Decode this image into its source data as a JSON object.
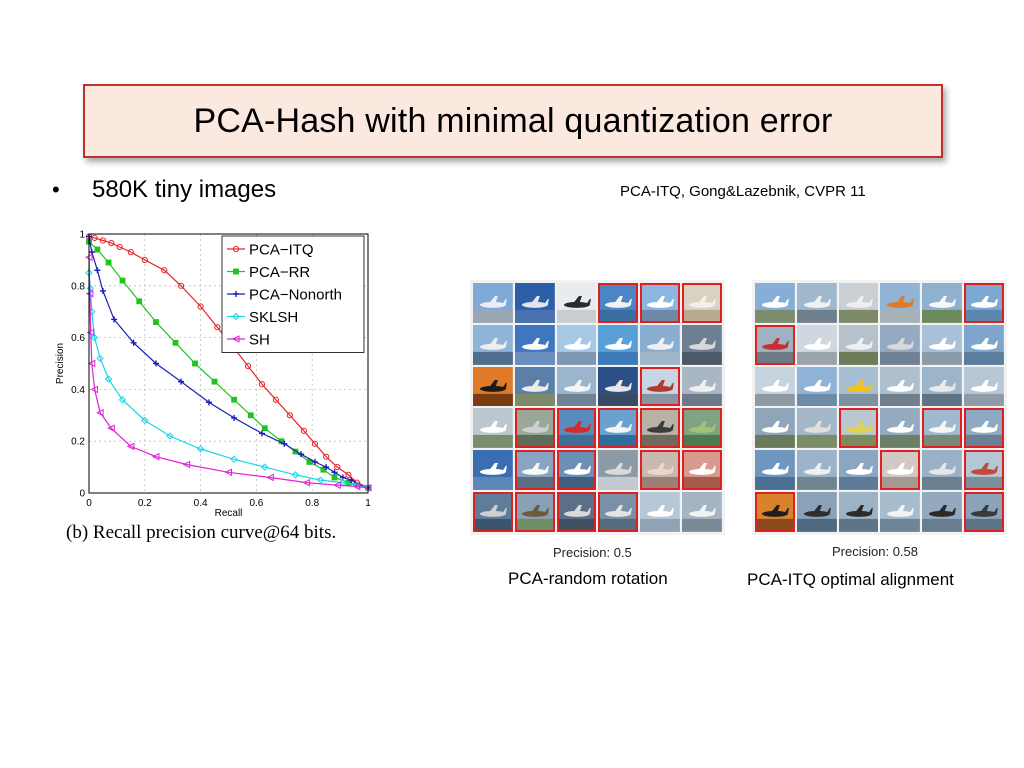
{
  "slide": {
    "title": "PCA-Hash with minimal quantization error",
    "bullet_text": "580K tiny images",
    "citation": "PCA-ITQ, Gong&Lazebnik, CVPR 11",
    "chart_caption": "(b)  Recall precision curve@64 bits.",
    "left_grid": {
      "precision_label": "Precision: 0.5",
      "caption": "PCA-random rotation",
      "cells": [
        {
          "sky": "#7fa9d6",
          "ground": "#9aa7b3",
          "obj": "#e8eef3",
          "red": false
        },
        {
          "sky": "#2d5fa8",
          "ground": "#4a70b0",
          "obj": "#dfe5ea",
          "red": false
        },
        {
          "sky": "#e9ecef",
          "ground": "#c9cdd1",
          "obj": "#2b2b2b",
          "red": false
        },
        {
          "sky": "#4b86c4",
          "ground": "#3a6ea0",
          "obj": "#f2f2f2",
          "red": true
        },
        {
          "sky": "#8ab6e0",
          "ground": "#6e8aa8",
          "obj": "#ffffff",
          "red": true
        },
        {
          "sky": "#d9d2c2",
          "ground": "#b8a990",
          "obj": "#f1efe8",
          "red": true
        },
        {
          "sky": "#8fb3d9",
          "ground": "#4f6d8c",
          "obj": "#eeeeee",
          "red": false
        },
        {
          "sky": "#3e77c0",
          "ground": "#6a8fbf",
          "obj": "#fafafa",
          "red": false
        },
        {
          "sky": "#a7c7e7",
          "ground": "#7d98b5",
          "obj": "#ffffff",
          "red": false
        },
        {
          "sky": "#5aa0d8",
          "ground": "#3d7bb8",
          "obj": "#ffffff",
          "red": false
        },
        {
          "sky": "#8aaed1",
          "ground": "#9fb5c9",
          "obj": "#f0f0f0",
          "red": false
        },
        {
          "sky": "#6d7f92",
          "ground": "#4c5a68",
          "obj": "#d8d8d8",
          "red": false
        },
        {
          "sky": "#e07a28",
          "ground": "#7a3c12",
          "obj": "#1a1a1a",
          "red": false
        },
        {
          "sky": "#5b7fa8",
          "ground": "#7d8b6a",
          "obj": "#ececec",
          "red": false
        },
        {
          "sky": "#9bb5cc",
          "ground": "#6f8396",
          "obj": "#f5f5f5",
          "red": false
        },
        {
          "sky": "#2c4f86",
          "ground": "#384a66",
          "obj": "#e8e8e8",
          "red": false
        },
        {
          "sky": "#c8d6e3",
          "ground": "#8795a3",
          "obj": "#b03a2e",
          "red": true
        },
        {
          "sky": "#a9b7c4",
          "ground": "#6b7a86",
          "obj": "#f0f0f0",
          "red": false
        },
        {
          "sky": "#bcc8d0",
          "ground": "#7a8e6e",
          "obj": "#ffffff",
          "red": false
        },
        {
          "sky": "#9aa89a",
          "ground": "#5d6e58",
          "obj": "#cfcfcf",
          "red": true
        },
        {
          "sky": "#5a8bbf",
          "ground": "#3f6e96",
          "obj": "#d42a2a",
          "red": true
        },
        {
          "sky": "#6ca0cf",
          "ground": "#2f6d9c",
          "obj": "#f4f4f4",
          "red": true
        },
        {
          "sky": "#b9b2a5",
          "ground": "#6f6a5e",
          "obj": "#3c3c3c",
          "red": true
        },
        {
          "sky": "#7fa383",
          "ground": "#4e7a52",
          "obj": "#a2c27a",
          "red": true
        },
        {
          "sky": "#3a6eb2",
          "ground": "#5c87b8",
          "obj": "#ffffff",
          "red": false
        },
        {
          "sky": "#88a4c0",
          "ground": "#5a6f84",
          "obj": "#f7f7f7",
          "red": true
        },
        {
          "sky": "#6b8fb5",
          "ground": "#3f5f80",
          "obj": "#ffffff",
          "red": true
        },
        {
          "sky": "#8c9aa6",
          "ground": "#c2c9cf",
          "obj": "#dadada",
          "red": false
        },
        {
          "sky": "#c9b8b0",
          "ground": "#9c7f74",
          "obj": "#f0d5cc",
          "red": true
        },
        {
          "sky": "#d79a8c",
          "ground": "#a85b4c",
          "obj": "#ffffff",
          "red": true
        },
        {
          "sky": "#5f7d9b",
          "ground": "#3a566e",
          "obj": "#cfcfcf",
          "red": true
        },
        {
          "sky": "#8aa0b4",
          "ground": "#6f8d66",
          "obj": "#6f5a3c",
          "red": true
        },
        {
          "sky": "#5b7088",
          "ground": "#3f5062",
          "obj": "#d9d9d9",
          "red": true
        },
        {
          "sky": "#7a90a6",
          "ground": "#566b80",
          "obj": "#e3e3e3",
          "red": true
        },
        {
          "sky": "#b6c8d8",
          "ground": "#90a2b3",
          "obj": "#ffffff",
          "red": false
        },
        {
          "sky": "#a5b4c2",
          "ground": "#7c8a97",
          "obj": "#f2f2f2",
          "red": false
        }
      ]
    },
    "right_grid": {
      "precision_label": "Precision: 0.58",
      "caption": "PCA-ITQ optimal alignment",
      "cells": [
        {
          "sky": "#86aed6",
          "ground": "#7d8c6a",
          "obj": "#ffffff",
          "red": false
        },
        {
          "sky": "#9fb8cd",
          "ground": "#6f7f8d",
          "obj": "#f1f1f1",
          "red": false
        },
        {
          "sky": "#c8d0d6",
          "ground": "#7c8a6a",
          "obj": "#eeeeee",
          "red": false
        },
        {
          "sky": "#90b4d6",
          "ground": "#a7b1b8",
          "obj": "#e07a28",
          "red": false
        },
        {
          "sky": "#8fb0cf",
          "ground": "#6d8a5c",
          "obj": "#f6f6f6",
          "red": false
        },
        {
          "sky": "#7da8d2",
          "ground": "#5d86ad",
          "obj": "#ffffff",
          "red": true
        },
        {
          "sky": "#9fb2c4",
          "ground": "#6c7a86",
          "obj": "#c83030",
          "red": true
        },
        {
          "sky": "#cfd8df",
          "ground": "#9aa4ab",
          "obj": "#ffffff",
          "red": false
        },
        {
          "sky": "#b5c2cc",
          "ground": "#6c7d58",
          "obj": "#f0f0f0",
          "red": false
        },
        {
          "sky": "#93aac0",
          "ground": "#708196",
          "obj": "#d9d9d9",
          "red": false
        },
        {
          "sky": "#a9c1d6",
          "ground": "#8a9aa6",
          "obj": "#ffffff",
          "red": false
        },
        {
          "sky": "#7ea6cd",
          "ground": "#5b7e9e",
          "obj": "#ffffff",
          "red": false
        },
        {
          "sky": "#c5d3de",
          "ground": "#8b9aa5",
          "obj": "#ffffff",
          "red": false
        },
        {
          "sky": "#8fb3d6",
          "ground": "#6d8aa6",
          "obj": "#ffffff",
          "red": false
        },
        {
          "sky": "#a7bfd3",
          "ground": "#7e8f9e",
          "obj": "#f2c418",
          "red": false
        },
        {
          "sky": "#aebfcd",
          "ground": "#6f7f8c",
          "obj": "#ffffff",
          "red": false
        },
        {
          "sky": "#9db5c9",
          "ground": "#5f7385",
          "obj": "#eaeaea",
          "red": false
        },
        {
          "sky": "#b7c7d4",
          "ground": "#8d9ca8",
          "obj": "#ffffff",
          "red": false
        },
        {
          "sky": "#8fa6ba",
          "ground": "#6a7a5a",
          "obj": "#ffffff",
          "red": false
        },
        {
          "sky": "#a3b7c8",
          "ground": "#7c8c68",
          "obj": "#dfdfdf",
          "red": false
        },
        {
          "sky": "#b9c7cf",
          "ground": "#7d8a5e",
          "obj": "#e2d34c",
          "red": true
        },
        {
          "sky": "#94abbf",
          "ground": "#6c7f68",
          "obj": "#ffffff",
          "red": false
        },
        {
          "sky": "#a1b9cd",
          "ground": "#78897a",
          "obj": "#f5f5f5",
          "red": true
        },
        {
          "sky": "#8ea9c2",
          "ground": "#6b7f92",
          "obj": "#ffffff",
          "red": true
        },
        {
          "sky": "#6f96be",
          "ground": "#4b6f92",
          "obj": "#ffffff",
          "red": false
        },
        {
          "sky": "#9ab3ca",
          "ground": "#70858f",
          "obj": "#f0f0f0",
          "red": false
        },
        {
          "sky": "#8aa6c2",
          "ground": "#5d7a96",
          "obj": "#ffffff",
          "red": false
        },
        {
          "sky": "#d2c9c4",
          "ground": "#a39892",
          "obj": "#ffffff",
          "red": true
        },
        {
          "sky": "#9ab2c8",
          "ground": "#6a7f8f",
          "obj": "#e6e6e6",
          "red": false
        },
        {
          "sky": "#b5c6d4",
          "ground": "#7c8f9c",
          "obj": "#c24a3a",
          "red": true
        },
        {
          "sky": "#d9822e",
          "ground": "#8a4a1c",
          "obj": "#1f1f1f",
          "red": true
        },
        {
          "sky": "#8aa2b7",
          "ground": "#4f6a80",
          "obj": "#2f2f2f",
          "red": false
        },
        {
          "sky": "#9cb3c6",
          "ground": "#5d7586",
          "obj": "#2b2b2b",
          "red": false
        },
        {
          "sky": "#a7bccd",
          "ground": "#6e8596",
          "obj": "#f4f4f4",
          "red": false
        },
        {
          "sky": "#93aabe",
          "ground": "#687d8f",
          "obj": "#2a2a2a",
          "red": false
        },
        {
          "sky": "#8aa3b9",
          "ground": "#5e7588",
          "obj": "#3a3a3a",
          "red": true
        }
      ]
    }
  },
  "chart_data": {
    "type": "line",
    "title": "",
    "xlabel": "Recall",
    "ylabel": "Precision",
    "xlim": [
      0,
      1
    ],
    "ylim": [
      0,
      1
    ],
    "xticks": [
      "0",
      "0.2",
      "0.4",
      "0.6",
      "0.8",
      "1"
    ],
    "yticks": [
      "0",
      "0.2",
      "0.4",
      "0.6",
      "0.8",
      "1"
    ],
    "legend_position": "top-right",
    "grid": true,
    "series": [
      {
        "name": "PCA−ITQ",
        "color": "#e8262b",
        "marker": "circle",
        "x": [
          0.0,
          0.02,
          0.05,
          0.08,
          0.11,
          0.15,
          0.2,
          0.27,
          0.33,
          0.4,
          0.46,
          0.52,
          0.57,
          0.62,
          0.67,
          0.72,
          0.77,
          0.81,
          0.85,
          0.89,
          0.93,
          0.96,
          1.0
        ],
        "y": [
          0.99,
          0.985,
          0.975,
          0.965,
          0.95,
          0.93,
          0.9,
          0.86,
          0.8,
          0.72,
          0.64,
          0.56,
          0.49,
          0.42,
          0.36,
          0.3,
          0.24,
          0.19,
          0.14,
          0.1,
          0.07,
          0.04,
          0.02
        ]
      },
      {
        "name": "PCA−RR",
        "color": "#1fc41f",
        "marker": "square",
        "x": [
          0.0,
          0.03,
          0.07,
          0.12,
          0.18,
          0.24,
          0.31,
          0.38,
          0.45,
          0.52,
          0.58,
          0.63,
          0.69,
          0.74,
          0.79,
          0.84,
          0.88,
          0.93,
          1.0
        ],
        "y": [
          0.97,
          0.94,
          0.89,
          0.82,
          0.74,
          0.66,
          0.58,
          0.5,
          0.43,
          0.36,
          0.3,
          0.25,
          0.2,
          0.16,
          0.12,
          0.09,
          0.06,
          0.04,
          0.02
        ]
      },
      {
        "name": "PCA−Nonorth",
        "color": "#1a1fb8",
        "marker": "plus",
        "x": [
          0.0,
          0.01,
          0.03,
          0.05,
          0.09,
          0.16,
          0.24,
          0.33,
          0.43,
          0.52,
          0.62,
          0.7,
          0.76,
          0.81,
          0.85,
          0.88,
          0.91,
          0.94,
          0.97,
          1.0
        ],
        "y": [
          0.99,
          0.93,
          0.86,
          0.78,
          0.67,
          0.58,
          0.5,
          0.43,
          0.35,
          0.29,
          0.23,
          0.19,
          0.15,
          0.12,
          0.1,
          0.08,
          0.06,
          0.05,
          0.03,
          0.02
        ]
      },
      {
        "name": "SKLSH",
        "color": "#19d6e6",
        "marker": "diamond",
        "x": [
          0.0,
          0.005,
          0.01,
          0.02,
          0.04,
          0.07,
          0.12,
          0.2,
          0.29,
          0.4,
          0.52,
          0.63,
          0.74,
          0.83,
          0.91,
          0.96,
          1.0
        ],
        "y": [
          0.85,
          0.79,
          0.7,
          0.6,
          0.52,
          0.44,
          0.36,
          0.28,
          0.22,
          0.17,
          0.13,
          0.1,
          0.07,
          0.05,
          0.04,
          0.03,
          0.02
        ]
      },
      {
        "name": "SH",
        "color": "#e021d6",
        "marker": "triangle-left",
        "x": [
          0.0,
          0.003,
          0.006,
          0.01,
          0.02,
          0.04,
          0.08,
          0.15,
          0.24,
          0.35,
          0.5,
          0.65,
          0.78,
          0.89,
          0.96,
          1.0
        ],
        "y": [
          0.91,
          0.77,
          0.62,
          0.5,
          0.4,
          0.31,
          0.25,
          0.18,
          0.14,
          0.11,
          0.08,
          0.06,
          0.04,
          0.03,
          0.025,
          0.02
        ]
      }
    ]
  }
}
